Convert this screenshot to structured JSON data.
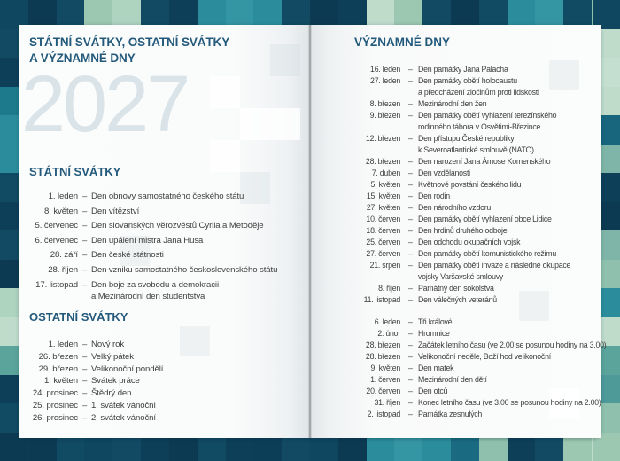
{
  "labels": {
    "dash": "–"
  },
  "year_watermark": "2027",
  "left_page": {
    "title_line1": "STÁTNÍ SVÁTKY, OSTATNÍ SVÁTKY",
    "title_line2": "A VÝZNAMNÉ DNY",
    "sections": [
      {
        "heading": "STÁTNÍ SVÁTKY",
        "items": [
          {
            "date": "1. leden",
            "lines": [
              "Den obnovy samostatného českého státu"
            ]
          },
          {
            "date": "8. květen",
            "lines": [
              "Den vítězství"
            ]
          },
          {
            "date": "5. červenec",
            "lines": [
              "Den slovanských věrozvěstů Cyrila a Metoděje"
            ]
          },
          {
            "date": "6. červenec",
            "lines": [
              "Den upálení mistra Jana Husa"
            ]
          },
          {
            "date": "28. září",
            "lines": [
              "Den české státnosti"
            ]
          },
          {
            "date": "28. říjen",
            "lines": [
              "Den vzniku samostatného československého státu"
            ]
          },
          {
            "date": "17. listopad",
            "lines": [
              "Den boje za svobodu a demokracii",
              "a Mezinárodní den studentstva"
            ]
          }
        ]
      },
      {
        "heading": "OSTATNÍ SVÁTKY",
        "items": [
          {
            "date": "1. leden",
            "lines": [
              "Nový rok"
            ]
          },
          {
            "date": "26. březen",
            "lines": [
              "Velký pátek"
            ]
          },
          {
            "date": "29. březen",
            "lines": [
              "Velikonoční pondělí"
            ]
          },
          {
            "date": "1. květen",
            "lines": [
              "Svátek práce"
            ]
          },
          {
            "date": "24. prosinec",
            "lines": [
              "Štědrý den"
            ]
          },
          {
            "date": "25. prosinec",
            "lines": [
              "1. svátek vánoční"
            ]
          },
          {
            "date": "26. prosinec",
            "lines": [
              "2. svátek vánoční"
            ]
          }
        ]
      }
    ]
  },
  "right_page": {
    "heading": "VÝZNAMNÉ DNY",
    "groups": [
      {
        "items": [
          {
            "date": "16. leden",
            "lines": [
              "Den památky Jana Palacha"
            ]
          },
          {
            "date": "27. leden",
            "lines": [
              "Den památky obětí holocaustu",
              "a předcházení zločinům proti lidskosti"
            ]
          },
          {
            "date": "8. březen",
            "lines": [
              "Mezinárodní den žen"
            ]
          },
          {
            "date": "9. březen",
            "lines": [
              "Den památky obětí vyhlazení terezínského",
              "rodinného tábora v Osvětimi-Březince"
            ]
          },
          {
            "date": "12. březen",
            "lines": [
              "Den přístupu České republiky",
              "k Severoatlantické smlouvě (NATO)"
            ]
          },
          {
            "date": "28. březen",
            "lines": [
              "Den narození Jana Ámose Komenského"
            ]
          },
          {
            "date": "7. duben",
            "lines": [
              "Den vzdělanosti"
            ]
          },
          {
            "date": "5. květen",
            "lines": [
              "Květnové povstání českého lidu"
            ]
          },
          {
            "date": "15. květen",
            "lines": [
              "Den rodin"
            ]
          },
          {
            "date": "27. květen",
            "lines": [
              "Den národního vzdoru"
            ]
          },
          {
            "date": "10. červen",
            "lines": [
              "Den památky obětí vyhlazení obce Lidice"
            ]
          },
          {
            "date": "18. červen",
            "lines": [
              "Den hrdinů druhého odboje"
            ]
          },
          {
            "date": "25. červen",
            "lines": [
              "Den odchodu okupačních vojsk"
            ]
          },
          {
            "date": "27. červen",
            "lines": [
              "Den památky obětí komunistického režimu"
            ]
          },
          {
            "date": "21. srpen",
            "lines": [
              "Den památky obětí invaze a následné okupace",
              "vojsky Varšavské smlouvy"
            ]
          },
          {
            "date": "8. říjen",
            "lines": [
              "Památný den sokolstva"
            ]
          },
          {
            "date": "11. listopad",
            "lines": [
              "Den válečných veteránů"
            ]
          }
        ]
      },
      {
        "items": [
          {
            "date": "6. leden",
            "lines": [
              "Tři králové"
            ]
          },
          {
            "date": "2. únor",
            "lines": [
              "Hromnice"
            ]
          },
          {
            "date": "28. březen",
            "lines": [
              "Začátek letního času (ve 2.00 se posunou hodiny na 3.00)"
            ]
          },
          {
            "date": "28. březen",
            "lines": [
              "Velikonoční neděle, Boží hod velikonoční"
            ]
          },
          {
            "date": "9. květen",
            "lines": [
              "Den matek"
            ]
          },
          {
            "date": "1. červen",
            "lines": [
              "Mezinárodní den dětí"
            ]
          },
          {
            "date": "20. červen",
            "lines": [
              "Den otců"
            ]
          },
          {
            "date": "31. říjen",
            "lines": [
              "Konec letního času (ve 3.00 se posunou hodiny na 2.00)"
            ]
          },
          {
            "date": "2. listopad",
            "lines": [
              "Památka zesnulých"
            ]
          }
        ]
      }
    ]
  },
  "colors": {
    "heading_blue": "#235a7c",
    "body_text": "#3e3e3e",
    "year_watermark": "#d9e3e8",
    "page_background": "#fbfcfc",
    "cover_navy": "#0e3f58",
    "cover_teal": "#2b8d9c",
    "cover_sage": "#9cc7b0",
    "cover_mint": "#bfdccb"
  },
  "decor": {
    "border_top": [
      "#0f4660",
      "#0c3a52",
      "#124a63",
      "#9cc7b0",
      "#aed3bf",
      "#124a63",
      "#0e3f58",
      "#2b8d9c",
      "#3596a3",
      "#2b8d9c",
      "#124a63",
      "#0c3a52",
      "#0e3f58",
      "#bfdccb",
      "#9cc7b0",
      "#124a63",
      "#0c3a52",
      "#114a63",
      "#2b8d9c",
      "#3596a3",
      "#114a63",
      "#8fc0ad"
    ],
    "border_bottom": [
      "#0d3e57",
      "#0c3a52",
      "#114a63",
      "#0f4660",
      "#124a63",
      "#0e3f58",
      "#0c3a52",
      "#114a63",
      "#0e3f58",
      "#0d3e57",
      "#124a63",
      "#0f4660",
      "#0c3a52",
      "#2b8d9c",
      "#3596a3",
      "#2b8d9c",
      "#1a6a82",
      "#8fc0ad",
      "#0e3f58",
      "#124a63",
      "#9cc7b0",
      "#bfdccb"
    ],
    "border_left": [
      "#0f4660",
      "#124a63",
      "#0e3f58",
      "#1d7a8c",
      "#2b8d9c",
      "#2b8d9c",
      "#114a63",
      "#0e3f58",
      "#124a63",
      "#0c3a52",
      "#aed3bf",
      "#bfdccb",
      "#5aa49b",
      "#0e3f58",
      "#114a63",
      "#0c3a52"
    ],
    "border_right": [
      "#0f4660",
      "#bfdccb",
      "#c4dfcf",
      "#bfdccb",
      "#17667e",
      "#7fb5a8",
      "#0e3f58",
      "#0c3a52",
      "#7fb5a8",
      "#8fc0ad",
      "#2b8d9c",
      "#bfdccb",
      "#5aa49b",
      "#4d9a99",
      "#8fc0ad",
      "#9cc7b0"
    ]
  }
}
